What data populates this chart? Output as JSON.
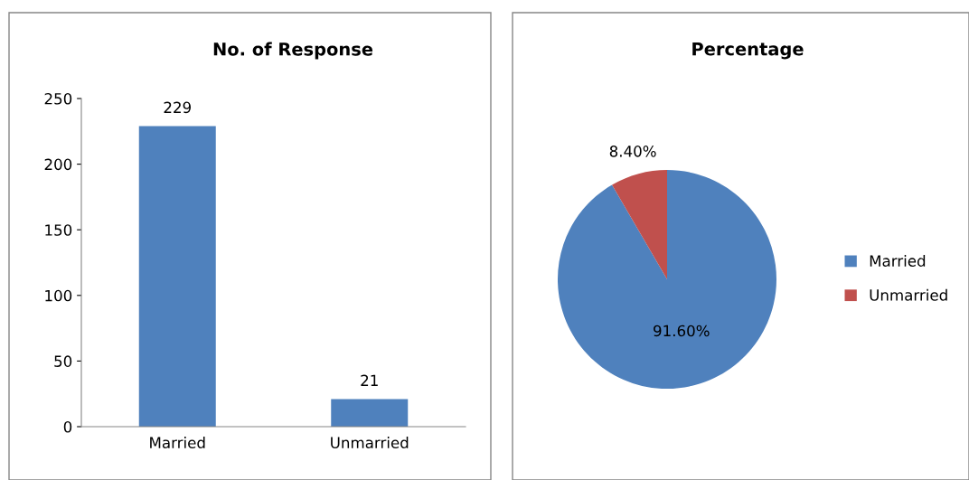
{
  "chart_data": [
    {
      "type": "bar",
      "title": "No. of Response",
      "categories": [
        "Married",
        "Unmarried"
      ],
      "values": [
        229,
        21
      ],
      "color": "#4f81bd",
      "ylim": [
        0,
        250
      ],
      "yticks": [
        0,
        50,
        100,
        150,
        200,
        250
      ],
      "grid": false,
      "data_labels": true
    },
    {
      "type": "pie",
      "title": "Percentage",
      "categories": [
        "Married",
        "Unmarried"
      ],
      "values": [
        91.6,
        8.4
      ],
      "colors": [
        "#4f81bd",
        "#c0504d"
      ],
      "value_labels": [
        "91.60%",
        "8.40%"
      ],
      "legend": "right"
    }
  ]
}
